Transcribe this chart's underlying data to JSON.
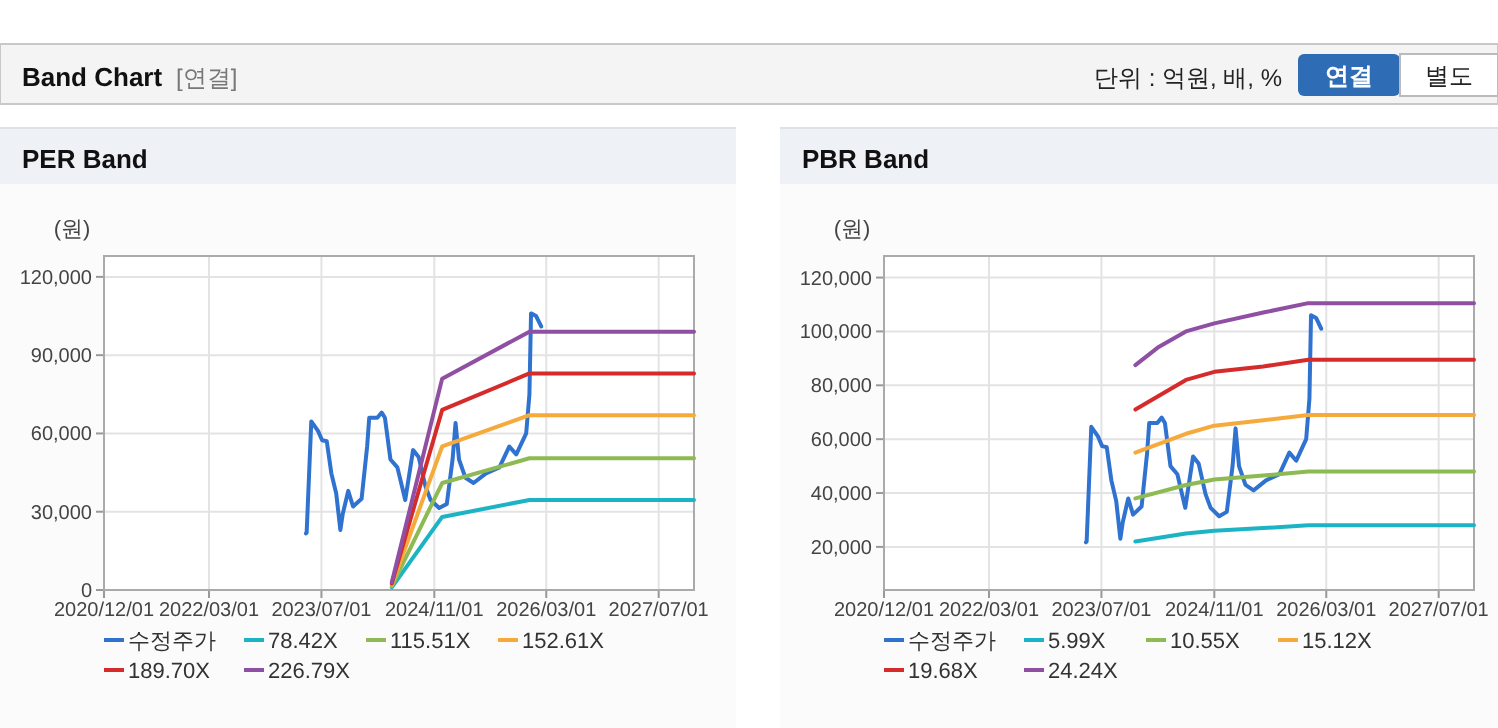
{
  "chart_data": [
    {
      "type": "other",
      "title": "Band Chart",
      "annotations": [
        "[연결]",
        "단위 : 억원, 배, %",
        "연결",
        "별도"
      ]
    },
    {
      "type": "line",
      "title": "PER Band",
      "ylabel": "(원)",
      "xlim": [
        "2020-12-01",
        "2027-12-01"
      ],
      "ylim": [
        0,
        128000
      ],
      "xticks": [
        {
          "value": "2020-12-01",
          "label": "2020/12/01"
        },
        {
          "value": "2022-03-01",
          "label": "2022/03/01"
        },
        {
          "value": "2023-07-01",
          "label": "2023/07/01"
        },
        {
          "value": "2024-11-01",
          "label": "2024/11/01"
        },
        {
          "value": "2026-03-01",
          "label": "2026/03/01"
        },
        {
          "value": "2027-07-01",
          "label": "2027/07/01"
        }
      ],
      "yticks": [
        0,
        {
          "value": 30000,
          "label": "30,000"
        },
        {
          "value": 60000,
          "label": "60,000"
        },
        {
          "value": 90000,
          "label": "90,000"
        },
        {
          "value": 120000,
          "label": "120,000"
        }
      ],
      "grid": true,
      "legend": "bottom",
      "marker": "none",
      "line_style": "solid",
      "series": [
        {
          "name": "수정주가",
          "color": "#2f72d0",
          "x": [
            "2023-04-25",
            "2023-04-28",
            "2023-05-18",
            "2023-06-16",
            "2023-07-04",
            "2023-07-24",
            "2023-08-13",
            "2023-09-03",
            "2023-09-21",
            "2023-10-01",
            "2023-10-25",
            "2023-11-15",
            "2023-12-22",
            "2024-01-15",
            "2024-01-24",
            "2024-02-28",
            "2024-03-18",
            "2024-04-01",
            "2024-04-25",
            "2024-05-25",
            "2024-06-28",
            "2024-08-01",
            "2024-08-25",
            "2024-09-24",
            "2024-10-16",
            "2024-11-22",
            "2024-12-25",
            "2025-01-19",
            "2025-02-01",
            "2025-02-16",
            "2025-03-16",
            "2025-04-20",
            "2025-06-13",
            "2025-08-10",
            "2025-09-22",
            "2025-10-22",
            "2025-12-04",
            "2025-12-18",
            "2025-12-25",
            "2026-01-16",
            "2026-02-07"
          ],
          "values": [
            21700,
            22000,
            64600,
            61000,
            57400,
            57000,
            44700,
            37000,
            23000,
            29000,
            38000,
            32000,
            35000,
            55000,
            66000,
            66000,
            68000,
            66000,
            50000,
            47000,
            34500,
            53600,
            51000,
            39600,
            34500,
            31400,
            33000,
            50000,
            64000,
            50000,
            43000,
            41000,
            44700,
            47000,
            55000,
            52000,
            60000,
            75000,
            106000,
            105000,
            101000
          ]
        },
        {
          "name": "78.42X",
          "color": "#1cb4c4",
          "x": [
            "2024-05-01",
            "2024-12-05",
            "2025-12-18",
            "2027-12-01"
          ],
          "values": [
            1000,
            28000,
            34500,
            34500
          ]
        },
        {
          "name": "115.51X",
          "color": "#8dba52",
          "x": [
            "2024-05-01",
            "2024-12-05",
            "2025-12-18",
            "2027-12-01"
          ],
          "values": [
            1500,
            41000,
            50500,
            50500
          ]
        },
        {
          "name": "152.61X",
          "color": "#f5aa3b",
          "x": [
            "2024-05-01",
            "2024-12-05",
            "2025-12-18",
            "2027-12-01"
          ],
          "values": [
            2000,
            55000,
            67000,
            67000
          ]
        },
        {
          "name": "189.70X",
          "color": "#d62b2b",
          "x": [
            "2024-05-01",
            "2024-12-05",
            "2025-12-18",
            "2027-12-01"
          ],
          "values": [
            2500,
            69000,
            83000,
            83000
          ]
        },
        {
          "name": "226.79X",
          "color": "#8f4fa3",
          "x": [
            "2024-05-01",
            "2024-12-05",
            "2025-12-18",
            "2027-12-01"
          ],
          "values": [
            3000,
            81000,
            99000,
            99000
          ]
        }
      ]
    },
    {
      "type": "line",
      "title": "PBR Band",
      "ylabel": "(원)",
      "xlim": [
        "2020-12-01",
        "2027-12-01"
      ],
      "ylim": [
        4000,
        128000
      ],
      "xticks": [
        {
          "value": "2020-12-01",
          "label": "2020/12/01"
        },
        {
          "value": "2022-03-01",
          "label": "2022/03/01"
        },
        {
          "value": "2023-07-01",
          "label": "2023/07/01"
        },
        {
          "value": "2024-11-01",
          "label": "2024/11/01"
        },
        {
          "value": "2026-03-01",
          "label": "2026/03/01"
        },
        {
          "value": "2027-07-01",
          "label": "2027/07/01"
        }
      ],
      "yticks": [
        {
          "value": 20000,
          "label": "20,000"
        },
        {
          "value": 40000,
          "label": "40,000"
        },
        {
          "value": 60000,
          "label": "60,000"
        },
        {
          "value": 80000,
          "label": "80,000"
        },
        {
          "value": 100000,
          "label": "100,000"
        },
        {
          "value": 120000,
          "label": "120,000"
        }
      ],
      "grid": true,
      "legend": "bottom",
      "marker": "none",
      "line_style": "solid",
      "series": [
        {
          "name": "수정주가",
          "color": "#2f72d0",
          "x": [
            "2023-04-25",
            "2023-04-28",
            "2023-05-18",
            "2023-06-16",
            "2023-07-04",
            "2023-07-24",
            "2023-08-13",
            "2023-09-03",
            "2023-09-21",
            "2023-10-01",
            "2023-10-25",
            "2023-11-15",
            "2023-12-22",
            "2024-01-15",
            "2024-01-24",
            "2024-02-28",
            "2024-03-18",
            "2024-04-01",
            "2024-04-25",
            "2024-05-25",
            "2024-06-28",
            "2024-08-01",
            "2024-08-25",
            "2024-09-24",
            "2024-10-16",
            "2024-11-22",
            "2024-12-25",
            "2025-01-19",
            "2025-02-01",
            "2025-02-16",
            "2025-03-16",
            "2025-04-20",
            "2025-06-13",
            "2025-08-10",
            "2025-09-22",
            "2025-10-22",
            "2025-12-04",
            "2025-12-18",
            "2025-12-25",
            "2026-01-16",
            "2026-02-07"
          ],
          "values": [
            21700,
            22000,
            64600,
            61000,
            57400,
            57000,
            44700,
            37000,
            23000,
            29000,
            38000,
            32000,
            35000,
            55000,
            66000,
            66000,
            68000,
            66000,
            50000,
            47000,
            34500,
            53600,
            51000,
            39600,
            34500,
            31400,
            33000,
            50000,
            64000,
            50000,
            43000,
            41000,
            44700,
            47000,
            55000,
            52000,
            60000,
            75000,
            106000,
            105000,
            101000
          ]
        },
        {
          "name": "5.99X",
          "color": "#1cb4c4",
          "x": [
            "2023-11-25",
            "2024-07-01",
            "2024-11-01",
            "2025-06-01",
            "2025-12-13",
            "2027-12-01"
          ],
          "values": [
            22000,
            25000,
            26000,
            27000,
            28000,
            28000
          ]
        },
        {
          "name": "10.55X",
          "color": "#8dba52",
          "x": [
            "2023-11-25",
            "2024-07-01",
            "2024-11-01",
            "2025-06-01",
            "2025-12-13",
            "2027-12-01"
          ],
          "values": [
            38000,
            43000,
            45000,
            46500,
            48000,
            48000
          ]
        },
        {
          "name": "15.12X",
          "color": "#f5aa3b",
          "x": [
            "2023-11-25",
            "2024-07-01",
            "2024-11-01",
            "2025-06-01",
            "2025-12-13",
            "2027-12-01"
          ],
          "values": [
            55000,
            62000,
            65000,
            67000,
            69000,
            69000
          ]
        },
        {
          "name": "19.68X",
          "color": "#d62b2b",
          "x": [
            "2023-11-25",
            "2024-07-01",
            "2024-11-01",
            "2025-06-01",
            "2025-12-13",
            "2027-12-01"
          ],
          "values": [
            71000,
            82000,
            85000,
            87000,
            89500,
            89500
          ]
        },
        {
          "name": "24.24X",
          "color": "#8f4fa3",
          "x": [
            "2023-11-25",
            "2024-03-01",
            "2024-07-01",
            "2024-11-01",
            "2025-06-01",
            "2025-12-13",
            "2027-12-01"
          ],
          "values": [
            87500,
            94000,
            100000,
            103000,
            107000,
            110500,
            110500
          ]
        }
      ]
    }
  ]
}
